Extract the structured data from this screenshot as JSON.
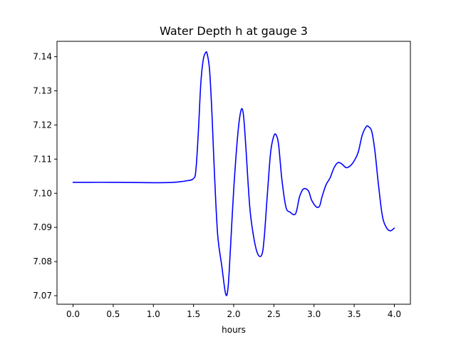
{
  "chart_data": {
    "type": "line",
    "title": "Water Depth h at gauge 3",
    "xlabel": "hours",
    "ylabel": "",
    "xlim": [
      -0.2,
      4.2
    ],
    "ylim": [
      7.0675,
      7.1445
    ],
    "xticks": [
      0.0,
      0.5,
      1.0,
      1.5,
      2.0,
      2.5,
      3.0,
      3.5,
      4.0
    ],
    "xtick_labels": [
      "0.0",
      "0.5",
      "1.0",
      "1.5",
      "2.0",
      "2.5",
      "3.0",
      "3.5",
      "4.0"
    ],
    "yticks": [
      7.07,
      7.08,
      7.09,
      7.1,
      7.11,
      7.12,
      7.13,
      7.14
    ],
    "ytick_labels": [
      "7.07",
      "7.08",
      "7.09",
      "7.10",
      "7.11",
      "7.12",
      "7.13",
      "7.14"
    ],
    "grid": false,
    "series": [
      {
        "color": "#0000ff",
        "x": [
          0.0,
          0.5,
          1.0,
          1.25,
          1.4,
          1.5,
          1.53,
          1.56,
          1.59,
          1.62,
          1.65,
          1.67,
          1.7,
          1.73,
          1.76,
          1.8,
          1.85,
          1.9,
          1.93,
          1.96,
          2.0,
          2.05,
          2.09,
          2.12,
          2.15,
          2.2,
          2.25,
          2.3,
          2.35,
          2.38,
          2.42,
          2.46,
          2.5,
          2.53,
          2.56,
          2.6,
          2.65,
          2.7,
          2.77,
          2.82,
          2.87,
          2.93,
          2.97,
          3.03,
          3.07,
          3.1,
          3.15,
          3.2,
          3.25,
          3.3,
          3.35,
          3.4,
          3.45,
          3.5,
          3.55,
          3.6,
          3.65,
          3.68,
          3.72,
          3.76,
          3.8,
          3.85,
          3.9,
          3.95,
          4.0
        ],
        "y": [
          7.1032,
          7.1032,
          7.1031,
          7.1032,
          7.1036,
          7.1043,
          7.107,
          7.118,
          7.132,
          7.139,
          7.1412,
          7.1408,
          7.136,
          7.123,
          7.106,
          7.088,
          7.079,
          7.0705,
          7.0725,
          7.084,
          7.101,
          7.117,
          7.1242,
          7.1232,
          7.114,
          7.096,
          7.087,
          7.0822,
          7.082,
          7.087,
          7.1,
          7.112,
          7.1168,
          7.117,
          7.114,
          7.104,
          7.096,
          7.0945,
          7.094,
          7.099,
          7.1013,
          7.1007,
          7.098,
          7.096,
          7.0963,
          7.099,
          7.1025,
          7.1045,
          7.1075,
          7.109,
          7.1085,
          7.1075,
          7.108,
          7.1095,
          7.112,
          7.117,
          7.1195,
          7.1195,
          7.118,
          7.112,
          7.103,
          7.0935,
          7.09,
          7.089,
          7.0898
        ]
      }
    ]
  }
}
